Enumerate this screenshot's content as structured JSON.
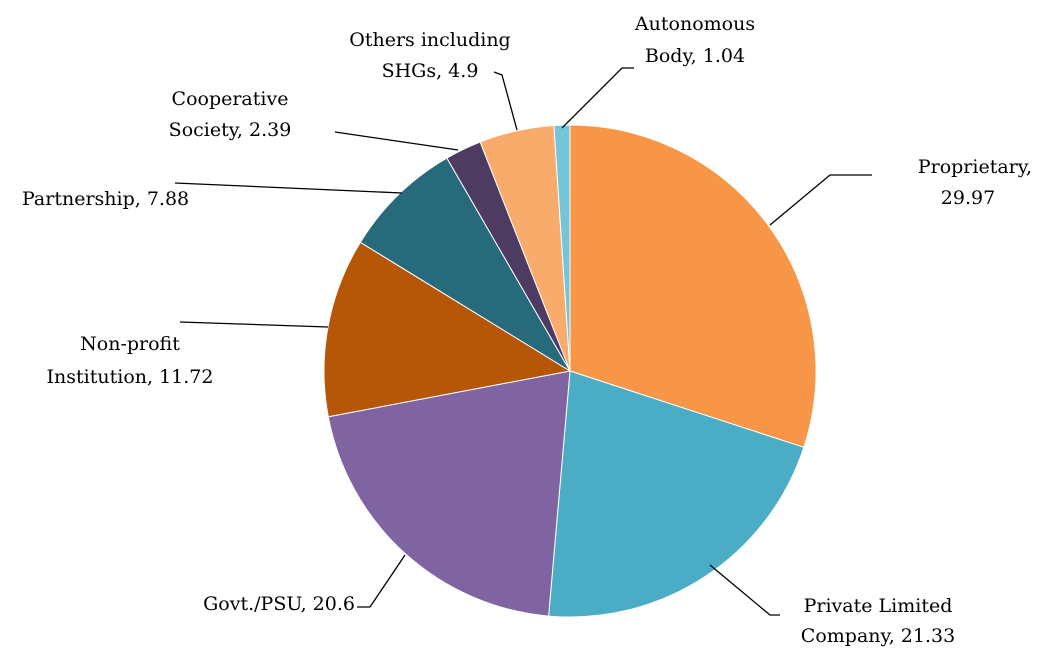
{
  "chart_data": {
    "type": "pie",
    "categories": [
      "Proprietary",
      "Private Limited Company",
      "Govt./PSU",
      "Non-profit Institution",
      "Partnership",
      "Cooperative Society",
      "Others including SHGs",
      "Autonomous Body"
    ],
    "values": [
      29.97,
      21.33,
      20.6,
      11.72,
      7.88,
      2.39,
      4.9,
      1.04
    ],
    "labels": [
      [
        "Proprietary,",
        "29.97"
      ],
      [
        "Private Limited",
        "Company, 21.33"
      ],
      [
        "Govt./PSU, 20.6"
      ],
      [
        "Non-profit",
        "Institution, 11.72"
      ],
      [
        "Partnership, 7.88"
      ],
      [
        "Cooperative",
        "Society, 2.39"
      ],
      [
        "Others including",
        "SHGs, 4.9"
      ],
      [
        "Autonomous",
        "Body, 1.04"
      ]
    ],
    "colors": [
      "#f79646",
      "#4bacc6",
      "#8064a2",
      "#b65708",
      "#276a7c",
      "#4d3b62",
      "#f9ab6b",
      "#75c5d9"
    ]
  }
}
